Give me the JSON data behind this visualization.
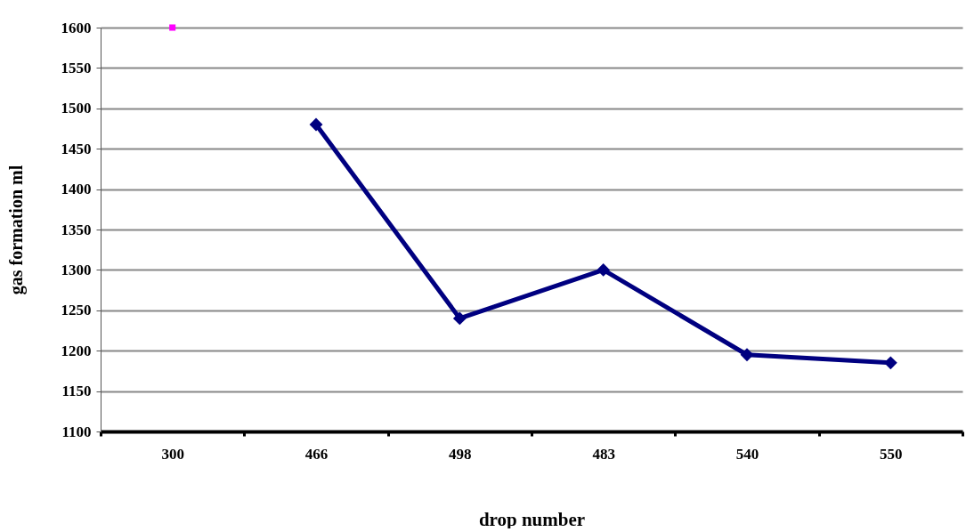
{
  "chart_data": {
    "type": "line",
    "xlabel": "drop number",
    "ylabel": "gas formation ml",
    "categories": [
      "300",
      "466",
      "498",
      "483",
      "540",
      "550"
    ],
    "series": [
      {
        "color": "#000080",
        "marker": "diamond",
        "values": [
          null,
          1480,
          1240,
          1300,
          1195,
          1185
        ]
      },
      {
        "type": "scatter",
        "color": "#ff00ff",
        "marker": "square",
        "values": [
          1600,
          null,
          null,
          null,
          null,
          null
        ]
      }
    ],
    "ylim": [
      1100,
      1600
    ],
    "yticks": [
      1100,
      1150,
      1200,
      1250,
      1300,
      1350,
      1400,
      1450,
      1500,
      1550,
      1600
    ],
    "grid": "y"
  }
}
